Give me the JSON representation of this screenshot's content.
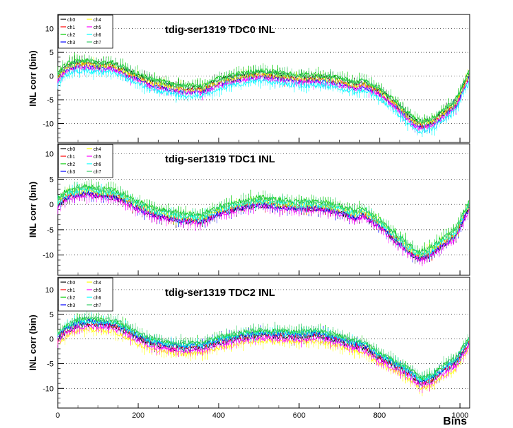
{
  "chart_data": [
    {
      "type": "line",
      "title": "tdig-ser1319 TDC0 INL",
      "ylabel": "INL corr (bin)",
      "xlabel": "",
      "xlim": [
        0,
        1024
      ],
      "ylim": [
        -14,
        13
      ],
      "x_ticks": [
        0,
        200,
        400,
        600,
        800,
        1000
      ],
      "y_ticks": [
        -10,
        -5,
        0,
        5,
        10
      ],
      "grid": "horizontal dotted",
      "legend_position": "top-left",
      "series": [
        {
          "name": "ch0",
          "color": "#000000",
          "offset": 0.6
        },
        {
          "name": "ch1",
          "color": "#ff0000",
          "offset": 0.0
        },
        {
          "name": "ch2",
          "color": "#00cc00",
          "offset": 1.0
        },
        {
          "name": "ch3",
          "color": "#0000ff",
          "offset": -0.3
        },
        {
          "name": "ch4",
          "color": "#ffff00",
          "offset": 0.2
        },
        {
          "name": "ch5",
          "color": "#ff00ff",
          "offset": -0.6
        },
        {
          "name": "ch6",
          "color": "#00ffff",
          "offset": -1.2
        },
        {
          "name": "ch7",
          "color": "#33cc66",
          "offset": 0.8
        }
      ],
      "curve": {
        "x": [
          0,
          20,
          50,
          80,
          110,
          130,
          160,
          200,
          240,
          280,
          320,
          360,
          400,
          450,
          500,
          550,
          600,
          650,
          700,
          740,
          760,
          800,
          850,
          880,
          900,
          930,
          960,
          990,
          1010,
          1023
        ],
        "y": [
          -0.5,
          1.5,
          2.3,
          2.3,
          1.8,
          2.2,
          1.0,
          -0.5,
          -1.8,
          -2.5,
          -3.0,
          -3.0,
          -1.5,
          -0.5,
          0.2,
          -0.3,
          -0.8,
          -0.7,
          -1.3,
          -2.3,
          -1.8,
          -3.5,
          -7.0,
          -9.5,
          -10.5,
          -10.0,
          -8.0,
          -6.0,
          -2.0,
          0.0
        ]
      }
    },
    {
      "type": "line",
      "title": "tdig-ser1319 TDC1 INL",
      "ylabel": "INL corr (bin)",
      "xlabel": "",
      "xlim": [
        0,
        1024
      ],
      "ylim": [
        -14,
        12
      ],
      "x_ticks": [
        0,
        200,
        400,
        600,
        800,
        1000
      ],
      "y_ticks": [
        -10,
        -5,
        0,
        5,
        10
      ],
      "grid": "horizontal dotted",
      "legend_position": "top-left",
      "series": [
        {
          "name": "ch0",
          "color": "#000000",
          "offset": -0.4
        },
        {
          "name": "ch1",
          "color": "#ff0000",
          "offset": 0.0
        },
        {
          "name": "ch2",
          "color": "#00cc00",
          "offset": 1.1
        },
        {
          "name": "ch3",
          "color": "#0000ff",
          "offset": -0.3
        },
        {
          "name": "ch4",
          "color": "#ffff00",
          "offset": 0.3
        },
        {
          "name": "ch5",
          "color": "#ff00ff",
          "offset": -0.6
        },
        {
          "name": "ch6",
          "color": "#00ffff",
          "offset": 0.4
        },
        {
          "name": "ch7",
          "color": "#33cc66",
          "offset": 0.9
        }
      ],
      "curve": {
        "x": [
          0,
          20,
          50,
          80,
          110,
          140,
          170,
          200,
          240,
          280,
          320,
          360,
          400,
          450,
          500,
          550,
          600,
          650,
          700,
          740,
          760,
          800,
          850,
          880,
          900,
          930,
          960,
          990,
          1010,
          1023
        ],
        "y": [
          0.0,
          1.5,
          2.3,
          2.4,
          2.0,
          1.8,
          0.8,
          -0.5,
          -1.8,
          -2.5,
          -3.0,
          -3.0,
          -1.5,
          -0.5,
          0.3,
          -0.2,
          -0.5,
          -0.5,
          -1.3,
          -2.3,
          -1.8,
          -4.0,
          -7.5,
          -9.5,
          -10.5,
          -9.5,
          -7.5,
          -6.0,
          -2.5,
          -0.5
        ]
      }
    },
    {
      "type": "line",
      "title": "tdig-ser1319 TDC2 INL",
      "ylabel": "INL corr (bin)",
      "xlabel": "Bins",
      "xlim": [
        0,
        1024
      ],
      "ylim": [
        -14,
        12.5
      ],
      "x_ticks": [
        0,
        200,
        400,
        600,
        800,
        1000
      ],
      "y_ticks": [
        -10,
        -5,
        0,
        5,
        10
      ],
      "grid": "horizontal dotted",
      "legend_position": "top-left",
      "series": [
        {
          "name": "ch0",
          "color": "#000000",
          "offset": 0.0
        },
        {
          "name": "ch1",
          "color": "#ff0000",
          "offset": 0.3
        },
        {
          "name": "ch2",
          "color": "#00cc00",
          "offset": 1.0
        },
        {
          "name": "ch3",
          "color": "#0000ff",
          "offset": 0.5
        },
        {
          "name": "ch4",
          "color": "#ffff00",
          "offset": -1.0
        },
        {
          "name": "ch5",
          "color": "#ff00ff",
          "offset": -0.4
        },
        {
          "name": "ch6",
          "color": "#00ffff",
          "offset": 0.7
        },
        {
          "name": "ch7",
          "color": "#33cc66",
          "offset": 1.2
        }
      ],
      "curve": {
        "x": [
          0,
          20,
          50,
          80,
          110,
          140,
          170,
          200,
          240,
          280,
          320,
          360,
          400,
          450,
          500,
          550,
          600,
          650,
          700,
          740,
          760,
          800,
          850,
          880,
          900,
          930,
          960,
          990,
          1010,
          1023
        ],
        "y": [
          0.0,
          1.5,
          2.8,
          3.0,
          2.8,
          2.5,
          1.5,
          0.0,
          -1.2,
          -1.8,
          -2.0,
          -1.8,
          -0.8,
          0.0,
          0.6,
          0.5,
          0.3,
          0.6,
          -0.5,
          -1.5,
          -1.8,
          -4.0,
          -6.0,
          -7.5,
          -9.0,
          -8.5,
          -6.5,
          -5.0,
          -2.5,
          -1.0
        ]
      }
    }
  ]
}
